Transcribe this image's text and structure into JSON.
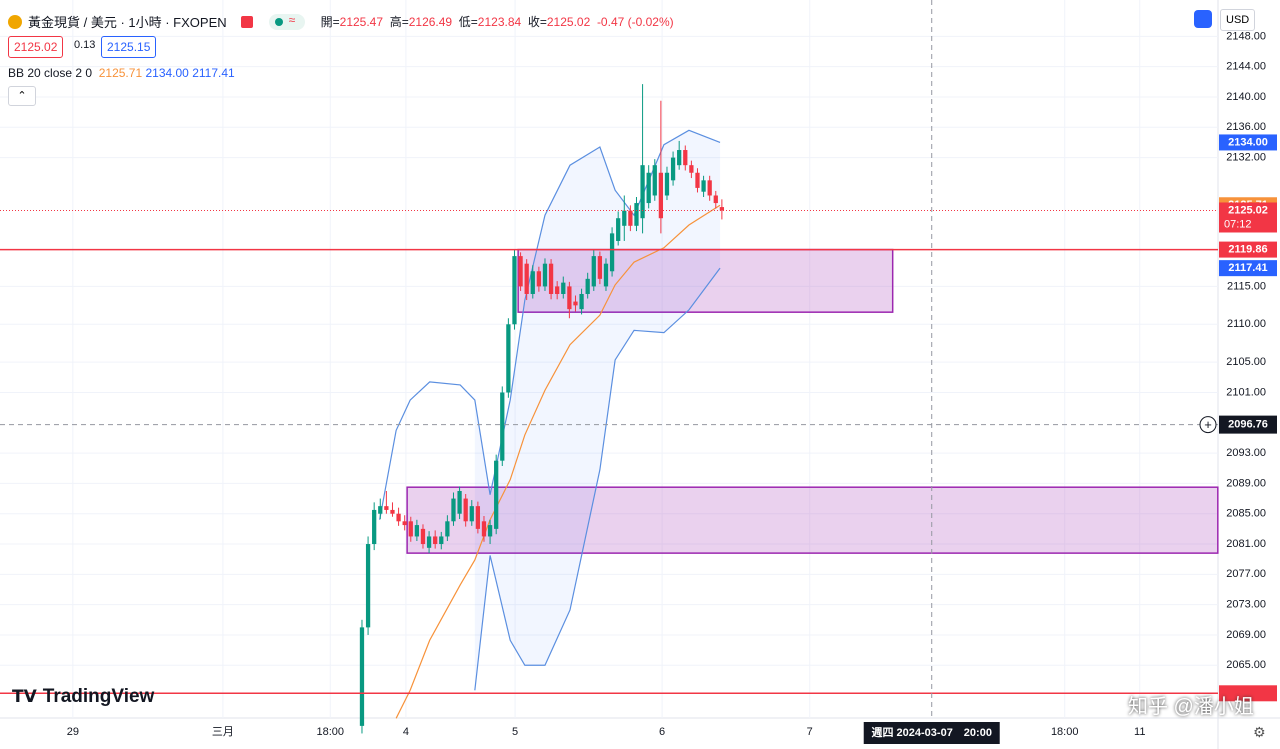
{
  "header": {
    "symbol": "黃金現貨 / 美元 · 1小時 · FXOPEN",
    "ohlc": [
      [
        "開=",
        "2125.47"
      ],
      [
        "高=",
        "2126.49"
      ],
      [
        "低=",
        "2123.84"
      ],
      [
        "收=",
        "2125.02"
      ]
    ],
    "change": "-0.47 (-0.02%)",
    "sell": "2125.02",
    "spread": "0.13",
    "buy": "2125.15",
    "indicator": {
      "name": "BB 20 close 2 0",
      "values": [
        "2125.71",
        "2134.00",
        "2117.41"
      ]
    },
    "currency": "USD",
    "logo": "TradingView",
    "watermark": "知乎 @潘小姐"
  },
  "chart_data": {
    "type": "candlestick",
    "up_color": "#089981",
    "down_color": "#f23645",
    "x": [
      0,
      1,
      2,
      3,
      4,
      5,
      6,
      7,
      8,
      9,
      10,
      11,
      12,
      13,
      14,
      15,
      16,
      17,
      18,
      19,
      20,
      21,
      22,
      23,
      24,
      25,
      26,
      27,
      28,
      29,
      30,
      31,
      32,
      33,
      34,
      35,
      36,
      37,
      38,
      39,
      40,
      41,
      42,
      43,
      44,
      45,
      46,
      47,
      48,
      49,
      50,
      51,
      52,
      53,
      54,
      55,
      56,
      57,
      58,
      59
    ],
    "open": [
      2057,
      2070,
      2081,
      2085,
      2086,
      2085.5,
      2085,
      2084,
      2084,
      2082,
      2083,
      2080.5,
      2082,
      2081,
      2082,
      2084,
      2085,
      2087,
      2084,
      2086,
      2084,
      2082,
      2083,
      2092,
      2101,
      2110,
      2119,
      2118,
      2114,
      2117,
      2115,
      2118,
      2115,
      2114,
      2115,
      2113,
      2112,
      2114,
      2115,
      2119,
      2115,
      2117,
      2121,
      2123,
      2125,
      2123,
      2124,
      2126,
      2127,
      2130,
      2127,
      2129,
      2131,
      2133,
      2131,
      2130,
      2127.5,
      2129,
      2127,
      2125.47
    ],
    "high": [
      2071,
      2082,
      2086.5,
      2087,
      2088,
      2086.5,
      2085.8,
      2084.8,
      2084.6,
      2084.2,
      2083.6,
      2082.7,
      2082.8,
      2082.6,
      2084.8,
      2087.8,
      2088.6,
      2087.6,
      2086.8,
      2086.6,
      2084.7,
      2084.2,
      2092.8,
      2101.8,
      2110.8,
      2119.9,
      2119.5,
      2118.6,
      2117.8,
      2117.6,
      2118.7,
      2118.6,
      2115.7,
      2116.3,
      2115.6,
      2113.8,
      2114.7,
      2116.8,
      2119.8,
      2119.6,
      2118.7,
      2122.8,
      2124.9,
      2127,
      2125.7,
      2126.8,
      2141.7,
      2131,
      2131.8,
      2139.5,
      2130.8,
      2132.8,
      2134.2,
      2133.6,
      2131.6,
      2130.6,
      2129.6,
      2129.6,
      2127.6,
      2126.49
    ],
    "low": [
      2056,
      2069,
      2080.2,
      2084.3,
      2085,
      2084.6,
      2083.4,
      2082.8,
      2081.3,
      2081.4,
      2080.4,
      2079.8,
      2080.4,
      2080.3,
      2081.4,
      2083.4,
      2084.3,
      2083.3,
      2083.4,
      2082.4,
      2081.3,
      2081,
      2082.3,
      2091.3,
      2100.3,
      2109.3,
      2114.4,
      2113.2,
      2113.4,
      2114.3,
      2114.4,
      2113.3,
      2113.3,
      2113.4,
      2110.8,
      2111.7,
      2111.3,
      2113.4,
      2114.4,
      2115.3,
      2114.4,
      2116.3,
      2120.4,
      2121,
      2122.3,
      2122.3,
      2122,
      2125.3,
      2126.3,
      2122,
      2126.4,
      2128.3,
      2130.4,
      2130.3,
      2129.3,
      2127.4,
      2126.8,
      2126.3,
      2125.3,
      2123.84
    ],
    "close": [
      2070,
      2081,
      2085.5,
      2086,
      2085.5,
      2085,
      2084,
      2083.5,
      2082,
      2083.5,
      2081,
      2082,
      2081,
      2082,
      2084,
      2087,
      2088,
      2084,
      2086,
      2083,
      2082,
      2083.5,
      2092,
      2101,
      2110,
      2119,
      2115,
      2114,
      2117,
      2115,
      2118,
      2114,
      2114,
      2115.5,
      2112,
      2112.5,
      2114,
      2116,
      2119,
      2116,
      2118,
      2122,
      2124,
      2125,
      2123,
      2126,
      2131,
      2130,
      2131,
      2124,
      2130,
      2132,
      2133,
      2131,
      2130,
      2128,
      2129,
      2127,
      2126,
      2125.02
    ],
    "bollinger": {
      "x": [
        2.9,
        5.6,
        7.9,
        11.1,
        16.1,
        18.5,
        21.0,
        24.3,
        26.7,
        30.0,
        34.1,
        39.0,
        41.5,
        44.6,
        49.5,
        53.6,
        58.7
      ],
      "upper": [
        2084.2,
        2096,
        2100,
        2102.4,
        2102,
        2100,
        2087.5,
        2100,
        2113.2,
        2124.4,
        2131,
        2133.4,
        2127.7,
        2124.4,
        2133.7,
        2135.6,
        2134.0
      ],
      "middle": [
        null,
        2058,
        2061.7,
        2068.3,
        2075.6,
        2078.9,
        2084.2,
        2089.5,
        2095.4,
        2101.3,
        2107.3,
        2111.2,
        2115.2,
        2118.2,
        2120.1,
        2123.1,
        2125.71
      ],
      "lower": [
        null,
        null,
        null,
        null,
        null,
        2061.7,
        2079.5,
        2068.3,
        2065,
        2065,
        2072.3,
        2090.8,
        2105.3,
        2109.2,
        2108.9,
        2111.9,
        2117.41
      ],
      "last_labels": [
        "2134.00",
        "2125.71",
        "2117.41"
      ],
      "colors": [
        "#5b8fe0",
        "#f7923a",
        "#5b8fe0"
      ]
    },
    "zones": [
      {
        "x": [
          25.6,
          87.0
        ],
        "y": [
          2111.6,
          2119.86
        ]
      },
      {
        "x": [
          7.4,
          140.3
        ],
        "y": [
          2079.8,
          2088.5
        ]
      }
    ],
    "price_lines": [
      {
        "value": 2119.86,
        "label": "2119.86"
      },
      {
        "value": 2061.3
      }
    ],
    "last_price": {
      "value": 2125.02,
      "label": "2125.02",
      "countdown": "07:12"
    },
    "crosshair": {
      "x": 93.4,
      "x_label": "週四 2024-03-07　20:00",
      "y": 2096.76,
      "y_label": "2096.76"
    },
    "xlim": [
      -59.34,
      140.33
    ],
    "xticks": [
      {
        "value": -47.4,
        "label": "29"
      },
      {
        "value": -22.8,
        "label": "三月"
      },
      {
        "value": -5.2,
        "label": "18:00"
      },
      {
        "value": 7.2,
        "label": "4"
      },
      {
        "value": 25.1,
        "label": "5"
      },
      {
        "value": 49.2,
        "label": "6"
      },
      {
        "value": 73.4,
        "label": "7"
      },
      {
        "value": 115.2,
        "label": "18:00"
      },
      {
        "value": 127.5,
        "label": "11"
      }
    ],
    "ylim": [
      2058.04,
      2152.8
    ],
    "yticks": [
      {
        "value": 2065,
        "label": "2065.00"
      },
      {
        "value": 2069,
        "label": "2069.00"
      },
      {
        "value": 2073,
        "label": "2073.00"
      },
      {
        "value": 2077,
        "label": "2077.00"
      },
      {
        "value": 2081,
        "label": "2081.00"
      },
      {
        "value": 2085,
        "label": "2085.00"
      },
      {
        "value": 2089,
        "label": "2089.00"
      },
      {
        "value": 2093,
        "label": "2093.00"
      },
      {
        "value": 2101,
        "label": "2101.00"
      },
      {
        "value": 2105,
        "label": "2105.00"
      },
      {
        "value": 2110,
        "label": "2110.00"
      },
      {
        "value": 2115,
        "label": "2115.00"
      },
      {
        "value": 2132,
        "label": "2132.00"
      },
      {
        "value": 2136,
        "label": "2136.00"
      },
      {
        "value": 2140,
        "label": "2140.00"
      },
      {
        "value": 2144,
        "label": "2144.00"
      },
      {
        "value": 2148,
        "label": "2148.00"
      }
    ],
    "grid": true
  }
}
